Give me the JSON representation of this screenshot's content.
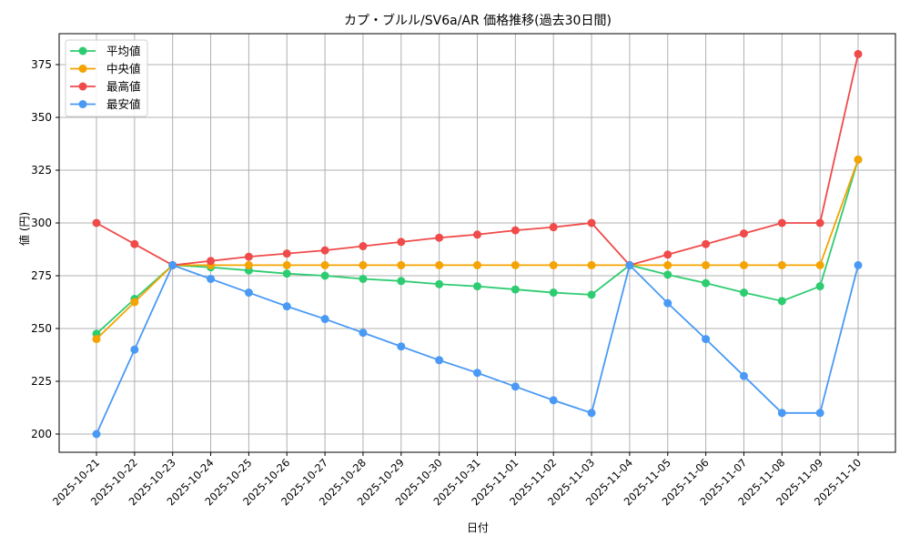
{
  "chart_data": {
    "type": "line",
    "title": "カプ・ブルル/SV6a/AR 価格推移(過去30日間)",
    "xlabel": "日付",
    "ylabel": "値 (円)",
    "ylim": [
      191,
      389
    ],
    "yticks": [
      200,
      225,
      250,
      275,
      300,
      325,
      350,
      375
    ],
    "grid": true,
    "legend_position": "upper left",
    "categories": [
      "2025-10-21",
      "2025-10-22",
      "2025-10-23",
      "2025-10-24",
      "2025-10-25",
      "2025-10-26",
      "2025-10-27",
      "2025-10-28",
      "2025-10-29",
      "2025-10-30",
      "2025-10-31",
      "2025-11-01",
      "2025-11-02",
      "2025-11-03",
      "2025-11-04",
      "2025-11-05",
      "2025-11-06",
      "2025-11-07",
      "2025-11-08",
      "2025-11-09",
      "2025-11-10"
    ],
    "series": [
      {
        "name": "平均値",
        "color": "#2ecc71",
        "values": [
          247.5,
          264,
          280,
          279,
          277.5,
          276,
          275,
          273.5,
          272.5,
          271,
          270,
          268.5,
          267,
          266,
          280,
          275.5,
          271.5,
          267,
          263,
          270,
          330
        ]
      },
      {
        "name": "中央値",
        "color": "#f5a300",
        "values": [
          245,
          262.5,
          280,
          280,
          280,
          280,
          280,
          280,
          280,
          280,
          280,
          280,
          280,
          280,
          280,
          280,
          280,
          280,
          280,
          280,
          330
        ]
      },
      {
        "name": "最高値",
        "color": "#f04a4a",
        "values": [
          300,
          290,
          280,
          282,
          284,
          285.5,
          287,
          289,
          291,
          293,
          294.5,
          296.5,
          298,
          300,
          280,
          285,
          290,
          295,
          300,
          300,
          380
        ]
      },
      {
        "name": "最安値",
        "color": "#4a9af5",
        "values": [
          200,
          240,
          280,
          273.5,
          267,
          260.5,
          254.5,
          248,
          241.5,
          235,
          229,
          222.5,
          216,
          210,
          280,
          262,
          245,
          227.5,
          210,
          210,
          280
        ]
      }
    ]
  }
}
